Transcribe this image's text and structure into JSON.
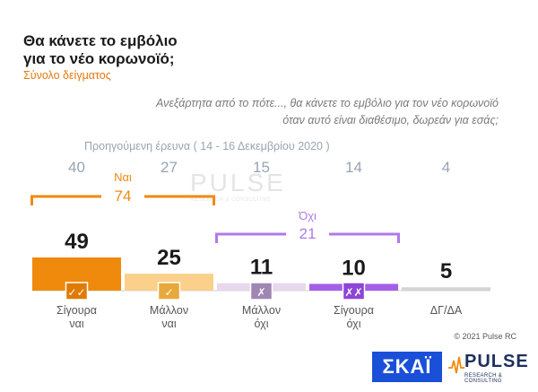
{
  "header": {
    "title_line1": "Θα κάνετε το εμβόλιο",
    "title_line2": "για το νέο κορωνοϊό;",
    "subtitle": "Σύνολο δείγματος"
  },
  "question": {
    "line1": "Ανεξάρτητα από το πότε..., θα κάνετε το εμβόλιο για τον νέο κορωνοϊό",
    "line2": "όταν αυτό είναι διαθέσιμο, δωρεάν για εσάς;"
  },
  "previous_survey_label": "Προηγούμενη έρευνα  ( 14 - 16  Δεκεμβρίου  2020 )",
  "watermark": {
    "main": "PULSE",
    "sub": "RESEARCH & CONSULTING"
  },
  "footer": {
    "copyright": "© 2021 Pulse RC",
    "logo_skai": "ΣΚΑΪ",
    "logo_pulse": "PULSE",
    "logo_pulse_sub": "RESEARCH & CONSULTING"
  },
  "chart_data": {
    "type": "bar",
    "categories": [
      [
        "Σίγουρα",
        "ναι"
      ],
      [
        "Μάλλον",
        "ναι"
      ],
      [
        "Μάλλον",
        "όχι"
      ],
      [
        "Σίγουρα",
        "όχι"
      ],
      [
        "ΔΓ/ΔΑ"
      ]
    ],
    "values": [
      49,
      25,
      11,
      10,
      5
    ],
    "previous_values": [
      40,
      27,
      15,
      14,
      4
    ],
    "icons": [
      "double-check-icon",
      "check-icon",
      "cross-icon",
      "double-cross-icon",
      ""
    ],
    "icon_glyphs": [
      "✓✓",
      "✓",
      "✗",
      "✗✗",
      ""
    ],
    "colors": [
      "#f08a0c",
      "#fbd08a",
      "#e7d8ee",
      "#a55ee8",
      "#d4d4d4"
    ],
    "icon_colors": [
      "#e07a00",
      "#e8a83a",
      "#9f86b3",
      "#8e44d6",
      ""
    ],
    "groups": [
      {
        "label": "Ναι",
        "total": "74",
        "color": "#f08a0c",
        "span": [
          0,
          1
        ]
      },
      {
        "label": "Όχι",
        "total": "21",
        "color": "#b07ae8",
        "span": [
          2,
          3
        ]
      }
    ],
    "ylim": [
      0,
      60
    ]
  }
}
